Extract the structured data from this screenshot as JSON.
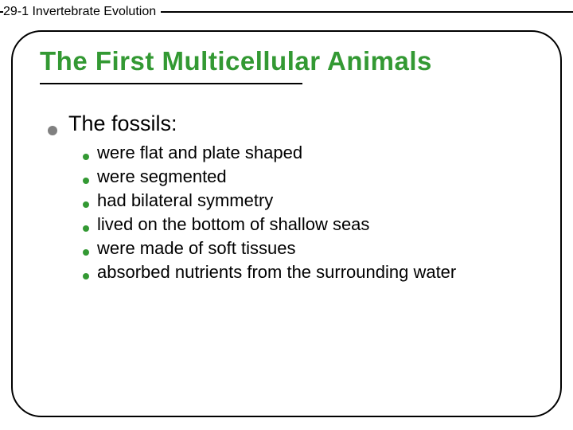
{
  "header": {
    "label": "29-1 Invertebrate Evolution",
    "label_fontsize": 16,
    "label_color": "#000000",
    "line_color": "#000000"
  },
  "slide": {
    "border_color": "#000000",
    "border_radius": 38,
    "background": "#ffffff"
  },
  "title": {
    "text": "The First Multicellular Animals",
    "color": "#339933",
    "fontsize": 33,
    "underline_width": 330,
    "underline_color": "#000000"
  },
  "main": {
    "bullet_color": "#808080",
    "text": "The fossils:",
    "text_fontsize": 27,
    "text_color": "#000000"
  },
  "sub": {
    "bullet_color": "#339933",
    "text_fontsize": 22,
    "text_color": "#000000",
    "items": [
      "were flat and plate shaped",
      "were segmented",
      "had bilateral symmetry",
      "lived on the bottom of shallow seas",
      "were made of soft tissues",
      "absorbed nutrients from the surrounding water"
    ]
  }
}
